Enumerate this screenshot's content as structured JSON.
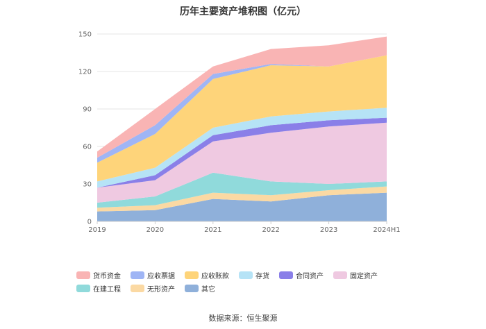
{
  "chart_data": {
    "type": "area",
    "stacked": true,
    "title": "历年主要资产堆积图（亿元）",
    "categories": [
      "2019",
      "2020",
      "2021",
      "2022",
      "2023",
      "2024H1"
    ],
    "ylim": [
      0,
      150
    ],
    "yticks": [
      0,
      30,
      60,
      90,
      120,
      150
    ],
    "grid": true,
    "legend_position": "bottom",
    "series": [
      {
        "name": "其它",
        "color": "#8FB0DA",
        "values": [
          8,
          9,
          18,
          16,
          21,
          23
        ]
      },
      {
        "name": "无形资产",
        "color": "#FBD9A3",
        "values": [
          3,
          4,
          5,
          5,
          4,
          5
        ]
      },
      {
        "name": "在建工程",
        "color": "#90DADB",
        "values": [
          4,
          7,
          16,
          11,
          5,
          4
        ]
      },
      {
        "name": "固定资产",
        "color": "#EFC9E1",
        "values": [
          12,
          13,
          25,
          39,
          46,
          47
        ]
      },
      {
        "name": "合同资产",
        "color": "#8A7FE8",
        "values": [
          0,
          4,
          5,
          6,
          5,
          4
        ]
      },
      {
        "name": "存货",
        "color": "#B6E3F6",
        "values": [
          5,
          6,
          6,
          7,
          7,
          8
        ]
      },
      {
        "name": "应收账款",
        "color": "#FED47A",
        "values": [
          15,
          27,
          39,
          41,
          36,
          42
        ]
      },
      {
        "name": "应收票据",
        "color": "#9FB5F5",
        "values": [
          4,
          7,
          4,
          1,
          0,
          0
        ]
      },
      {
        "name": "货币资金",
        "color": "#F9B4B4",
        "values": [
          5,
          13,
          6,
          12,
          17,
          15
        ]
      }
    ]
  },
  "legend_order": [
    "货币资金",
    "应收票据",
    "应收账款",
    "存货",
    "合同资产",
    "固定资产",
    "在建工程",
    "无形资产",
    "其它"
  ],
  "source_text": "数据来源：恒生聚源"
}
